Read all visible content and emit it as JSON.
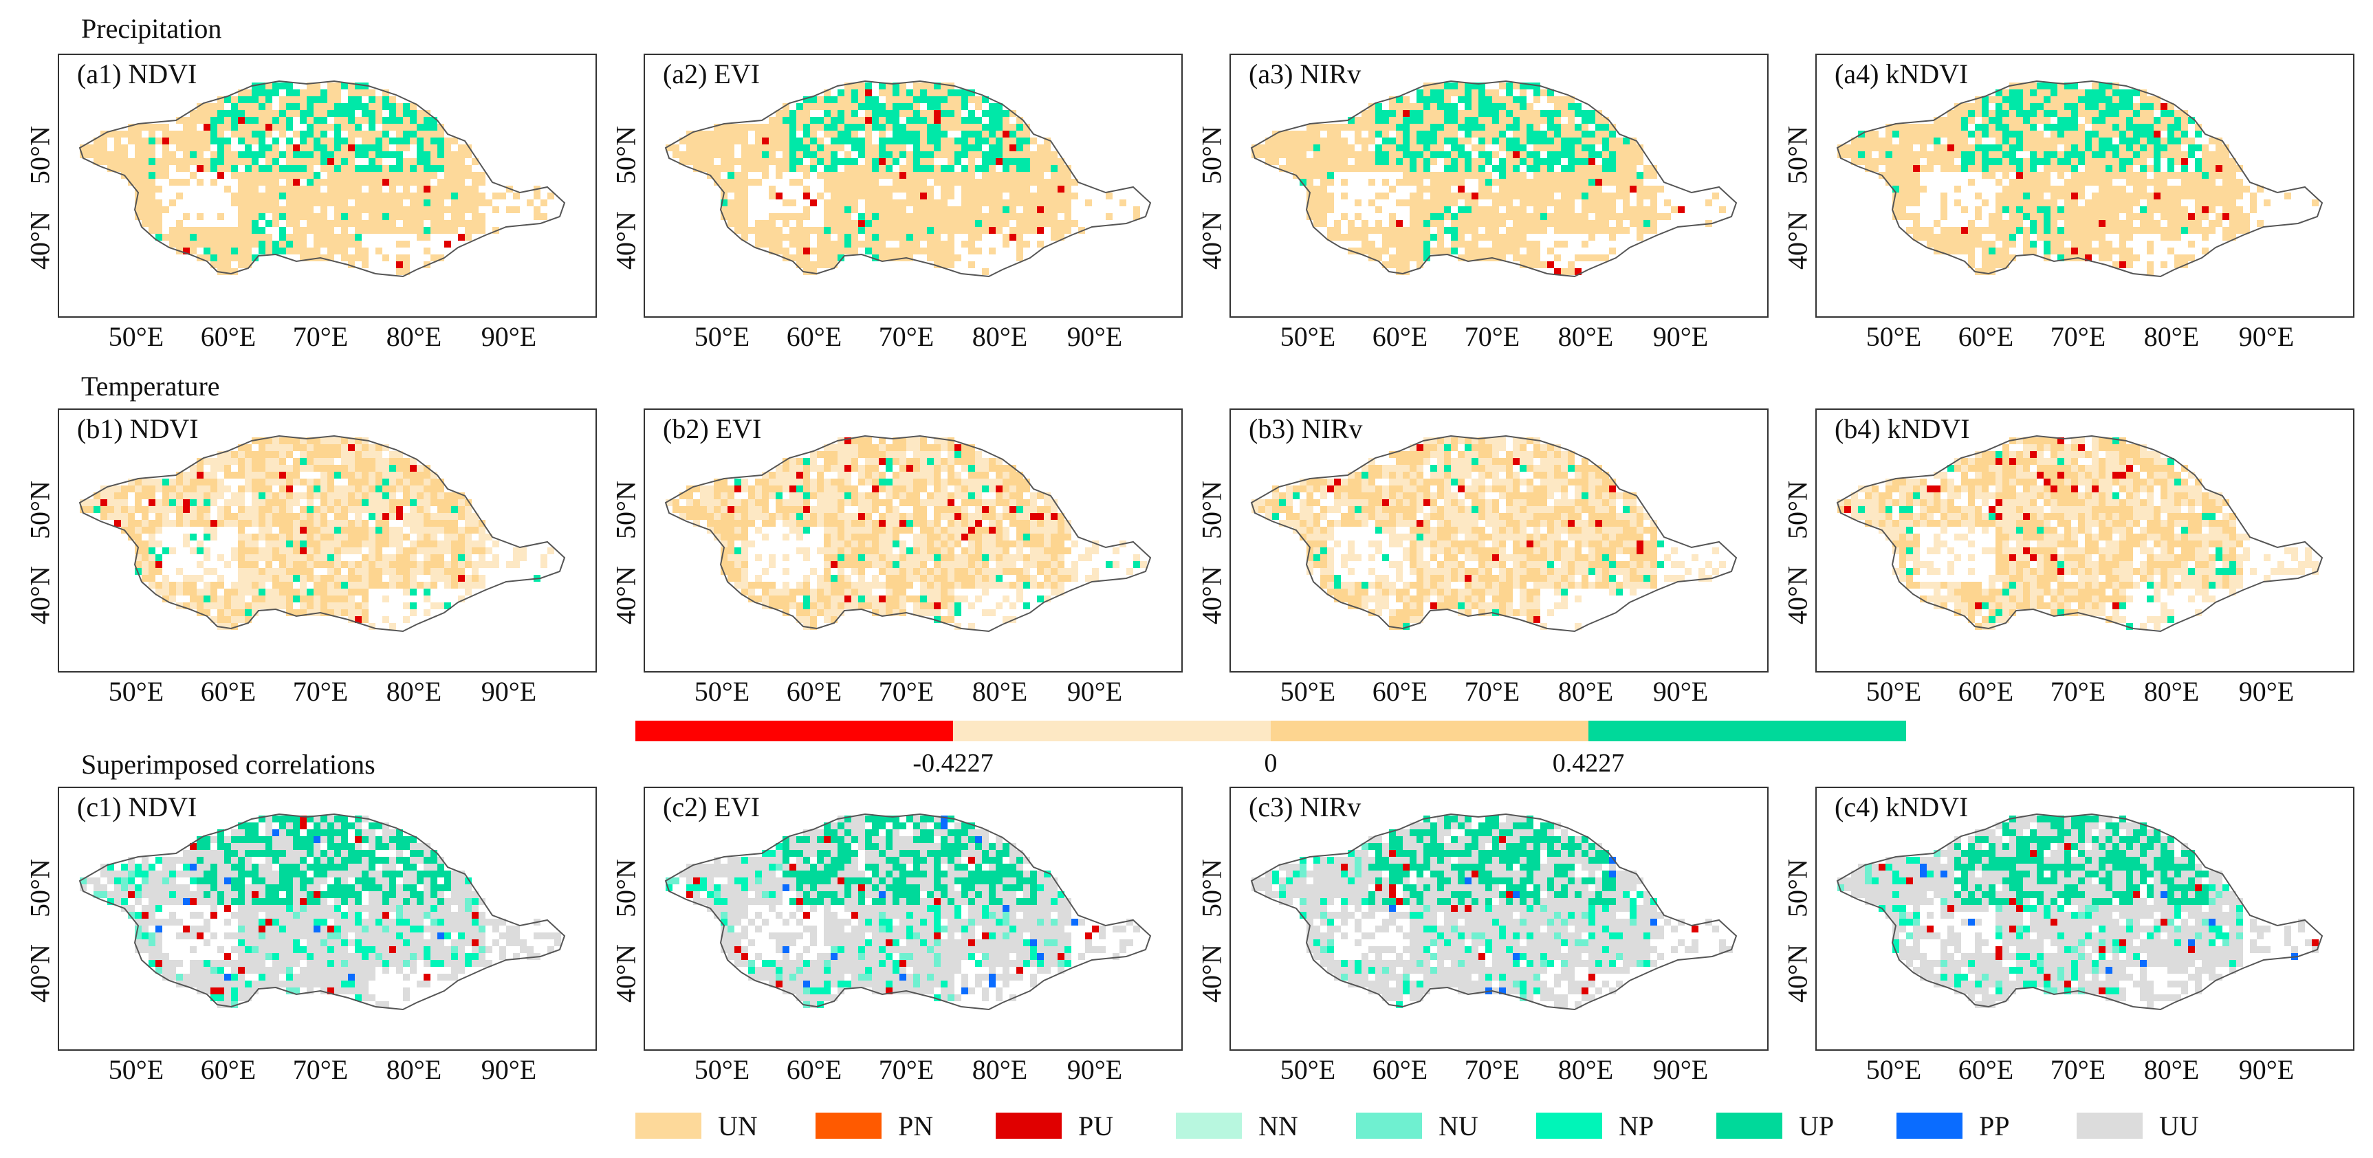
{
  "rows": [
    {
      "title": "Precipitation",
      "panels": [
        {
          "label": "(a1) NDVI",
          "scheme": "precip"
        },
        {
          "label": "(a2) EVI",
          "scheme": "precip"
        },
        {
          "label": "(a3) NIRv",
          "scheme": "precip"
        },
        {
          "label": "(a4) kNDVI",
          "scheme": "precip"
        }
      ]
    },
    {
      "title": "Temperature",
      "panels": [
        {
          "label": "(b1) NDVI",
          "scheme": "temp"
        },
        {
          "label": "(b2) EVI",
          "scheme": "temp"
        },
        {
          "label": "(b3) NIRv",
          "scheme": "temp"
        },
        {
          "label": "(b4) kNDVI",
          "scheme": "temp"
        }
      ]
    },
    {
      "title": "Superimposed correlations",
      "panels": [
        {
          "label": "(c1) NDVI",
          "scheme": "super"
        },
        {
          "label": "(c2) EVI",
          "scheme": "super"
        },
        {
          "label": "(c3) NIRv",
          "scheme": "super"
        },
        {
          "label": "(c4) kNDVI",
          "scheme": "super"
        }
      ]
    }
  ],
  "lat_labels": [
    "50°N",
    "40°N"
  ],
  "lon_labels": [
    "50°E",
    "60°E",
    "70°E",
    "80°E",
    "90°E"
  ],
  "colorbar": {
    "colors": [
      "#ff0000",
      "#fde8c4",
      "#fdd590",
      "#00d99a"
    ],
    "ticks": [
      "-0.4227",
      "0",
      "0.4227"
    ]
  },
  "legend": [
    {
      "label": "UN",
      "color": "#fdd99a"
    },
    {
      "label": "PN",
      "color": "#ff5a00"
    },
    {
      "label": "PU",
      "color": "#e00000"
    },
    {
      "label": "NN",
      "color": "#b8f7df"
    },
    {
      "label": "NU",
      "color": "#6ff0d0"
    },
    {
      "label": "NP",
      "color": "#00f5b8"
    },
    {
      "label": "UP",
      "color": "#00d99a"
    },
    {
      "label": "PP",
      "color": "#0a6cff"
    },
    {
      "label": "UU",
      "color": "#dcdcdc"
    }
  ]
}
